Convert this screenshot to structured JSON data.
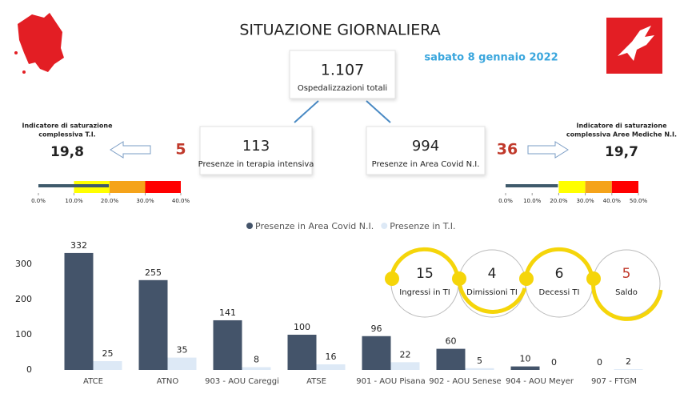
{
  "header": {
    "title": "SITUAZIONE GIORNALIERA",
    "date": "sabato 8 gennaio 2022"
  },
  "total": {
    "value": "1.107",
    "label": "Ospedalizzazioni totali"
  },
  "intensive": {
    "value": "113",
    "label": "Presenze in terapia intensiva",
    "delta": "5"
  },
  "covid_area": {
    "value": "994",
    "label": "Presenze in Area Covid N.I.",
    "delta": "36"
  },
  "gauges": [
    {
      "title_lines": [
        "Indicatore di saturazione",
        "complessiva T.I."
      ],
      "value": 19.8,
      "value_label": "19,8",
      "xlim": [
        0,
        40
      ],
      "ticks": [
        {
          "value": 0,
          "label": "0.0%"
        },
        {
          "value": 10,
          "label": "10.0%"
        },
        {
          "value": 20,
          "label": "20.0%"
        },
        {
          "value": 30,
          "label": "30.0%"
        },
        {
          "value": 40,
          "label": "40.0%"
        }
      ],
      "zone_colors": [
        "#ffffff",
        "#ffff00",
        "#f5a31a",
        "#ff0000"
      ],
      "line_color": "#3f5a6b"
    },
    {
      "title_lines": [
        "Indicatore di saturazione",
        "complessiva Aree Mediche N.I."
      ],
      "value": 19.7,
      "value_label": "19,7",
      "xlim": [
        0,
        50
      ],
      "ticks": [
        {
          "value": 0,
          "label": "0.0%"
        },
        {
          "value": 10,
          "label": "10.0%"
        },
        {
          "value": 20,
          "label": "20.0%"
        },
        {
          "value": 30,
          "label": "30.0%"
        },
        {
          "value": 40,
          "label": "40.0%"
        },
        {
          "value": 50,
          "label": "50.0%"
        }
      ],
      "zone_colors": [
        "#ffffff",
        "#ffffff",
        "#ffff00",
        "#f5a31a",
        "#ff0000"
      ],
      "line_color": "#3f5a6b"
    }
  ],
  "flow": [
    {
      "value": 15,
      "label": "Ingressi in TI"
    },
    {
      "value": 4,
      "label": "Dimissioni TI"
    },
    {
      "value": 6,
      "label": "Decessi TI"
    },
    {
      "value": 5,
      "label": "Saldo"
    }
  ],
  "chart_data": {
    "type": "bar",
    "categories": [
      "ATCE",
      "ATNO",
      "903 - AOU Careggi",
      "ATSE",
      "901 - AOU Pisana",
      "902 - AOU Senese",
      "904 - AOU Meyer",
      "907 - FTGM"
    ],
    "series": [
      {
        "name": "Presenze in Area Covid N.I.",
        "color": "#44546a",
        "values": [
          332,
          255,
          141,
          100,
          96,
          60,
          10,
          0
        ]
      },
      {
        "name": "Presenze in T.I.",
        "color": "#dde9f6",
        "values": [
          25,
          35,
          8,
          16,
          22,
          5,
          0,
          2
        ]
      }
    ],
    "ylim": [
      0,
      350
    ],
    "yticks": [
      0,
      100,
      200,
      300
    ],
    "grid": false,
    "legend": "top"
  }
}
